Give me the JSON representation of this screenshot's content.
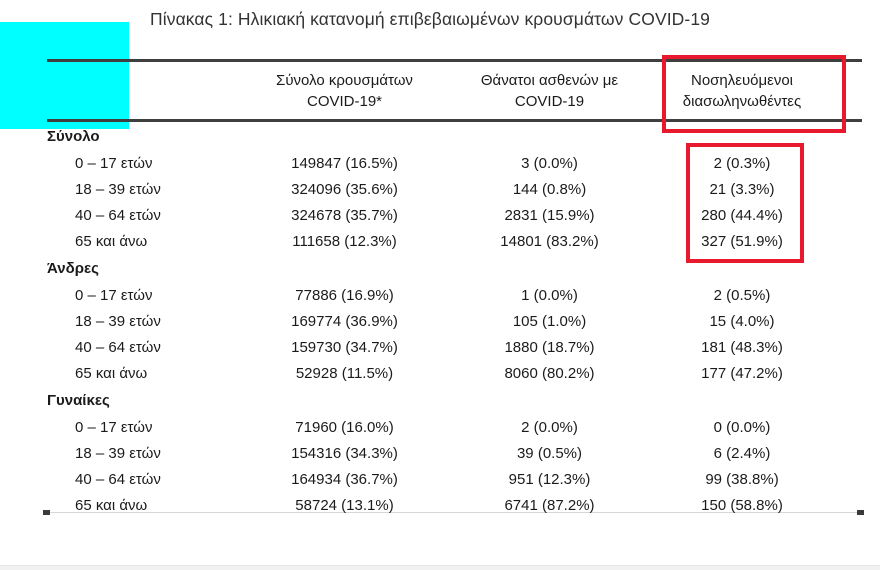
{
  "title": "Πίνακας 1: Ηλικιακή κατανομή επιβεβαιωμένων κρουσμάτων COVID-19",
  "colors": {
    "accent-red": "#e8192c",
    "cyan": "#00ffff",
    "rule-dark": "#3f3f3f",
    "text": "#1b1b1b"
  },
  "table": {
    "columns": {
      "cases": {
        "line1": "Σύνολο κρουσμάτων",
        "line2": "COVID-19*"
      },
      "deaths": {
        "line1": "Θάνατοι ασθενών με",
        "line2": "COVID-19"
      },
      "intubated": {
        "line1": "Νοσηλευόμενοι",
        "line2": "διασωληνωθέντες"
      }
    },
    "groups": [
      {
        "label": "Σύνολο",
        "rows": [
          {
            "age": "0 – 17 ετών",
            "cases": "149847 (16.5%)",
            "deaths": "3 (0.0%)",
            "intubated": "2 (0.3%)"
          },
          {
            "age": "18 – 39 ετών",
            "cases": "324096 (35.6%)",
            "deaths": "144 (0.8%)",
            "intubated": "21 (3.3%)"
          },
          {
            "age": "40 – 64 ετών",
            "cases": "324678 (35.7%)",
            "deaths": "2831 (15.9%)",
            "intubated": "280 (44.4%)"
          },
          {
            "age": "65 και άνω",
            "cases": "111658 (12.3%)",
            "deaths": "14801 (83.2%)",
            "intubated": "327 (51.9%)"
          }
        ]
      },
      {
        "label": "Άνδρες",
        "rows": [
          {
            "age": "0 – 17 ετών",
            "cases": "77886 (16.9%)",
            "deaths": "1 (0.0%)",
            "intubated": "2 (0.5%)"
          },
          {
            "age": "18 – 39 ετών",
            "cases": "169774 (36.9%)",
            "deaths": "105 (1.0%)",
            "intubated": "15 (4.0%)"
          },
          {
            "age": "40 – 64 ετών",
            "cases": "159730 (34.7%)",
            "deaths": "1880 (18.7%)",
            "intubated": "181 (48.3%)"
          },
          {
            "age": "65 και άνω",
            "cases": "52928 (11.5%)",
            "deaths": "8060 (80.2%)",
            "intubated": "177 (47.2%)"
          }
        ]
      },
      {
        "label": "Γυναίκες",
        "rows": [
          {
            "age": "0 – 17 ετών",
            "cases": "71960 (16.0%)",
            "deaths": "2 (0.0%)",
            "intubated": "0 (0.0%)"
          },
          {
            "age": "18 – 39 ετών",
            "cases": "154316 (34.3%)",
            "deaths": "39 (0.5%)",
            "intubated": "6 (2.4%)"
          },
          {
            "age": "40 – 64 ετών",
            "cases": "164934 (36.7%)",
            "deaths": "951 (12.3%)",
            "intubated": "99 (38.8%)"
          },
          {
            "age": "65 και άνω",
            "cases": "58724 (13.1%)",
            "deaths": "6741 (87.2%)",
            "intubated": "150 (58.8%)"
          }
        ]
      }
    ]
  }
}
